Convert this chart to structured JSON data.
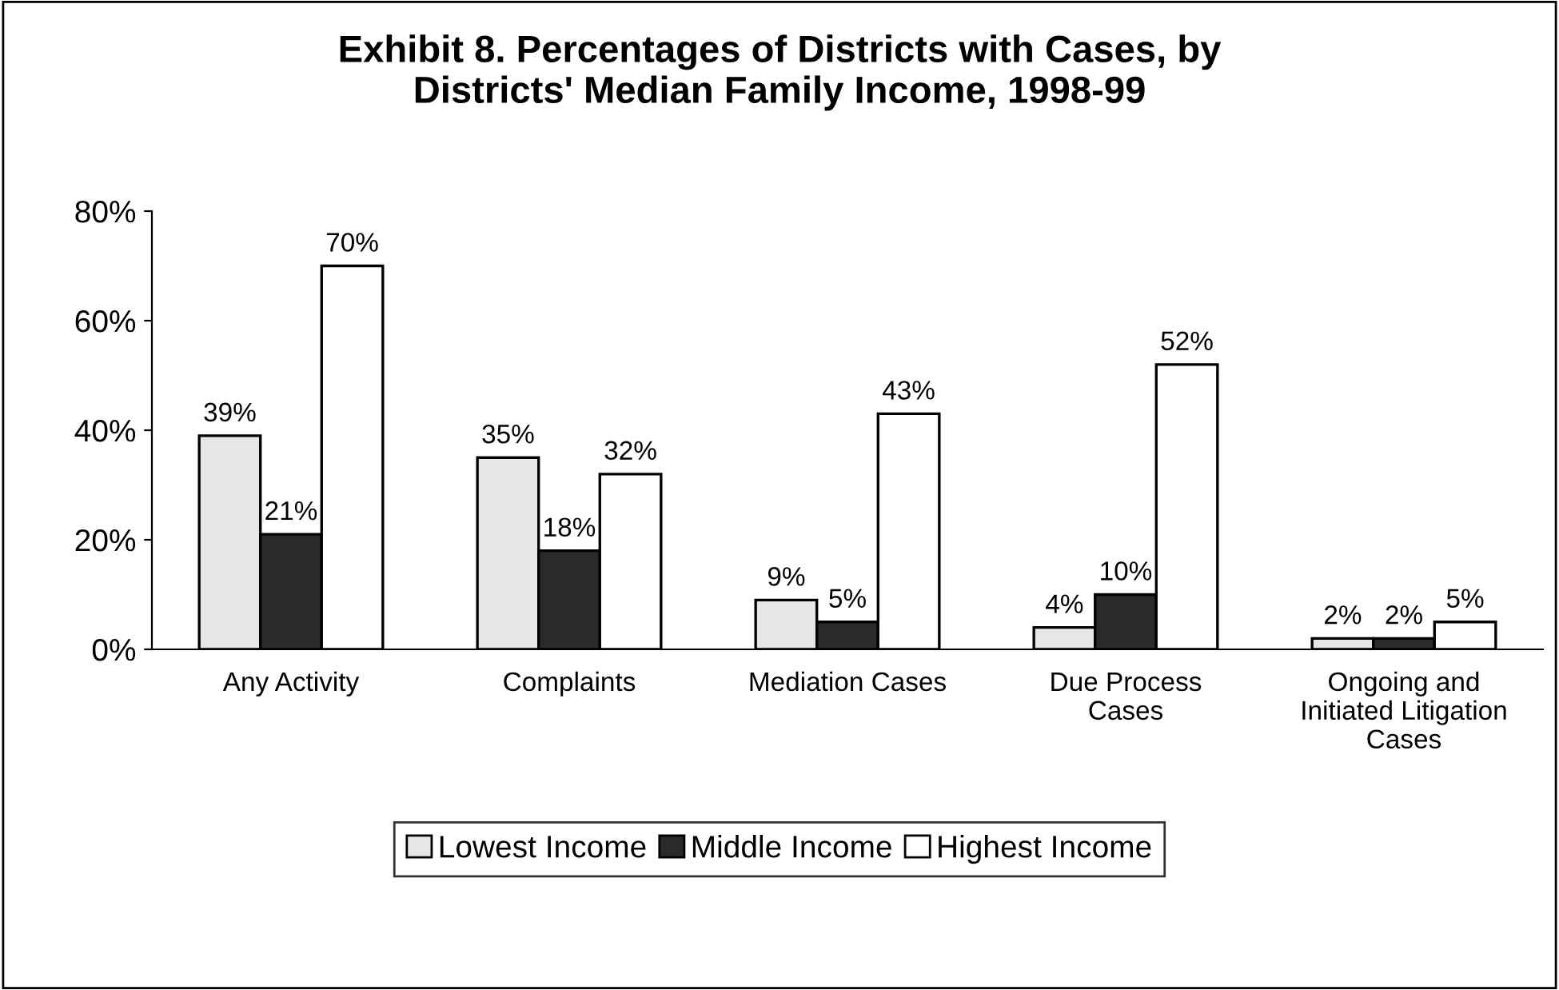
{
  "chart_data": {
    "type": "bar",
    "title": "Exhibit 8. Percentages of Districts with Cases, by\nDistricts' Median Family Income, 1998-99",
    "categories": [
      "Any Activity",
      "Complaints",
      "Mediation Cases",
      "Due Process\nCases",
      "Ongoing and\nInitiated Litigation\nCases"
    ],
    "series": [
      {
        "name": "Lowest Income",
        "color": "#e6e6e6",
        "values": [
          39,
          35,
          9,
          4,
          2
        ],
        "value_labels": [
          "39%",
          "35%",
          "9%",
          "4%",
          "2%"
        ]
      },
      {
        "name": "Middle Income",
        "color": "#2a2a2a",
        "values": [
          21,
          18,
          5,
          10,
          2
        ],
        "value_labels": [
          "21%",
          "18%",
          "5%",
          "10%",
          "2%"
        ]
      },
      {
        "name": "Highest Income",
        "color": "#ffffff",
        "values": [
          70,
          32,
          43,
          52,
          5
        ],
        "value_labels": [
          "70%",
          "32%",
          "43%",
          "52%",
          "5%"
        ]
      }
    ],
    "ylim": [
      0,
      80
    ],
    "yticks": [
      {
        "value": 0,
        "label": "0%"
      },
      {
        "value": 20,
        "label": "20%"
      },
      {
        "value": 40,
        "label": "40%"
      },
      {
        "value": 60,
        "label": "60%"
      },
      {
        "value": 80,
        "label": "80%"
      }
    ],
    "grid": false,
    "legend": "bottom"
  }
}
